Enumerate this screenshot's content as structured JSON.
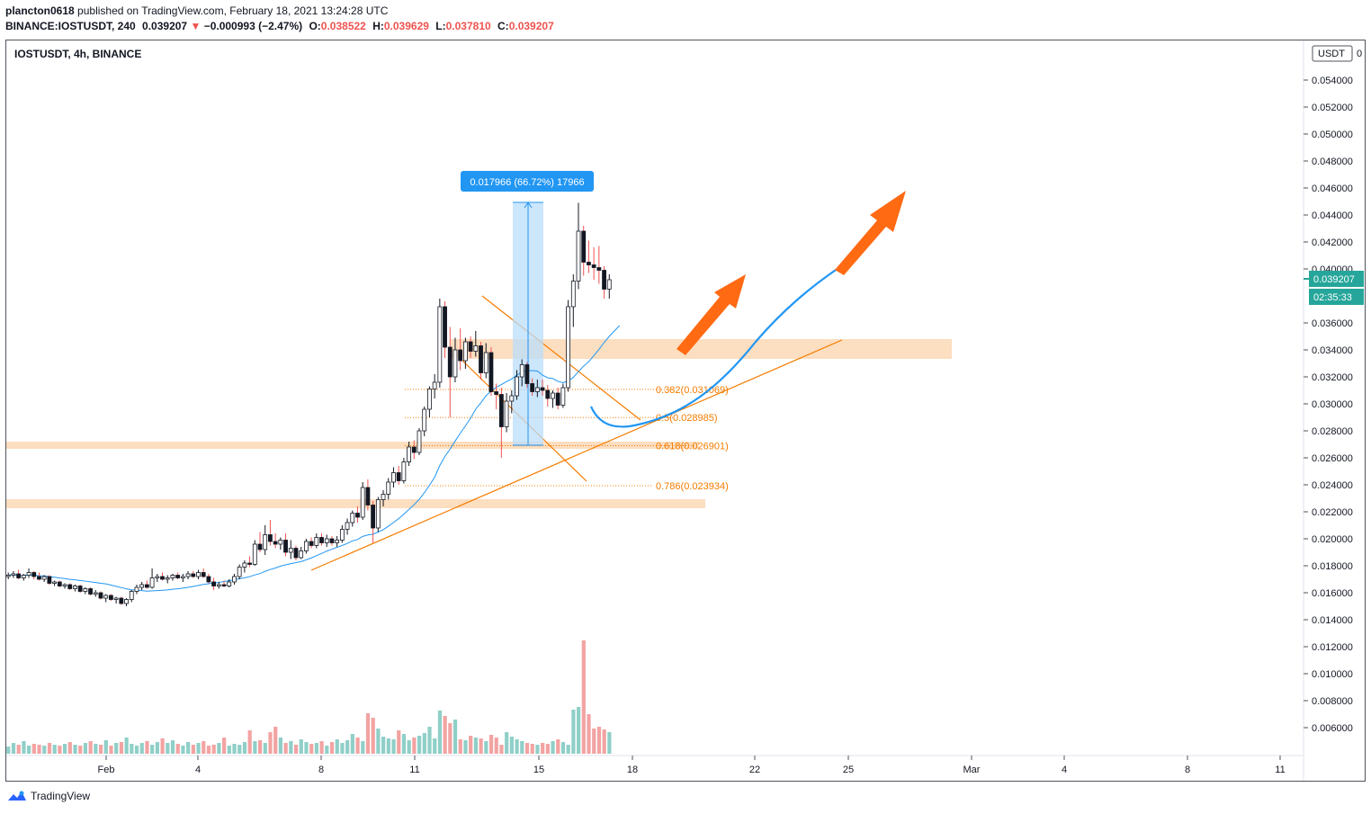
{
  "header": {
    "publisher": "plancton0618",
    "published_text": "published on TradingView.com, February 18, 2021 13:24:28 UTC",
    "symbol_line": "BINANCE:IOSTUSDT, 240",
    "last": "0.039207",
    "change_arrow": "▼",
    "change": "−0.000993 (−2.47%)",
    "o_label": "O:",
    "o_val": "0.038522",
    "h_label": "H:",
    "h_val": "0.039629",
    "l_label": "L:",
    "l_val": "0.037810",
    "c_label": "C:",
    "c_val": "0.039207"
  },
  "chart_title": "IOSTUSDT, 4h, BINANCE",
  "axis": {
    "unit_label": "USDT",
    "unit_suffix": "0",
    "price_badge": "0.039207",
    "countdown_badge": "02:35:33"
  },
  "measure_label": "0.017966 (66.72%) 17966",
  "fib_levels": [
    {
      "label": "0.382(0.031069)",
      "price": 0.031069
    },
    {
      "label": "0.5(0.028985)",
      "price": 0.028985
    },
    {
      "label": "0.618(0.026901)",
      "price": 0.026901
    },
    {
      "label": "0.786(0.023934)",
      "price": 0.023934
    }
  ],
  "footer": {
    "brand": "TradingView"
  },
  "colors": {
    "up": "#26a69a",
    "down": "#ef5350",
    "ma": "#2196f3",
    "zone": "#fbd8b5",
    "fib": "#f57c00",
    "arrow": "#ff6a13",
    "vol_up": "#8fcfc8",
    "vol_down": "#f2a3a2"
  },
  "chart_data": {
    "type": "candlestick",
    "title": "IOSTUSDT, 4h, BINANCE",
    "ylabel": "USDT",
    "ylim": [
      0.0047,
      0.0566
    ],
    "yticks": [
      "0.054000",
      "0.052000",
      "0.050000",
      "0.048000",
      "0.046000",
      "0.044000",
      "0.042000",
      "0.040000",
      "0.036000",
      "0.034000",
      "0.032000",
      "0.030000",
      "0.028000",
      "0.026000",
      "0.024000",
      "0.022000",
      "0.020000",
      "0.018000",
      "0.016000",
      "0.014000",
      "0.012000",
      "0.010000",
      "0.008000",
      "0.006000"
    ],
    "xticks": [
      "Feb",
      "4",
      "8",
      "11",
      "15",
      "18",
      "22",
      "25",
      "Mar",
      "4",
      "8",
      "11"
    ],
    "moving_average_period_note": "",
    "candles": [
      [
        0.0172,
        0.0175,
        0.017,
        0.0173
      ],
      [
        0.0173,
        0.0176,
        0.0171,
        0.0174
      ],
      [
        0.0174,
        0.0177,
        0.017,
        0.0171
      ],
      [
        0.0171,
        0.0174,
        0.0169,
        0.0173
      ],
      [
        0.0173,
        0.0178,
        0.0171,
        0.0175
      ],
      [
        0.0175,
        0.0176,
        0.017,
        0.0172
      ],
      [
        0.0172,
        0.0175,
        0.0169,
        0.017
      ],
      [
        0.017,
        0.0173,
        0.0168,
        0.0172
      ],
      [
        0.0172,
        0.0173,
        0.0166,
        0.0167
      ],
      [
        0.0167,
        0.0169,
        0.0165,
        0.0168
      ],
      [
        0.0168,
        0.0169,
        0.0164,
        0.0165
      ],
      [
        0.0165,
        0.0167,
        0.0163,
        0.0166
      ],
      [
        0.0166,
        0.0167,
        0.0162,
        0.0163
      ],
      [
        0.0163,
        0.0166,
        0.0161,
        0.0165
      ],
      [
        0.0165,
        0.0166,
        0.016,
        0.0161
      ],
      [
        0.0161,
        0.0164,
        0.0159,
        0.0163
      ],
      [
        0.0163,
        0.0164,
        0.0158,
        0.0159
      ],
      [
        0.0159,
        0.0162,
        0.0157,
        0.016
      ],
      [
        0.016,
        0.0161,
        0.0155,
        0.0156
      ],
      [
        0.0156,
        0.0159,
        0.0153,
        0.0158
      ],
      [
        0.0158,
        0.0159,
        0.0154,
        0.0155
      ],
      [
        0.0155,
        0.0157,
        0.0152,
        0.0156
      ],
      [
        0.0156,
        0.0157,
        0.0151,
        0.0152
      ],
      [
        0.0152,
        0.0156,
        0.015,
        0.0155
      ],
      [
        0.0155,
        0.0162,
        0.0153,
        0.0161
      ],
      [
        0.0161,
        0.0166,
        0.0159,
        0.0164
      ],
      [
        0.0164,
        0.0168,
        0.0162,
        0.0166
      ],
      [
        0.0166,
        0.0169,
        0.0163,
        0.0164
      ],
      [
        0.0164,
        0.0178,
        0.0163,
        0.0171
      ],
      [
        0.0171,
        0.0174,
        0.0168,
        0.0172
      ],
      [
        0.0172,
        0.0175,
        0.0169,
        0.017
      ],
      [
        0.017,
        0.0173,
        0.0167,
        0.0171
      ],
      [
        0.0171,
        0.0174,
        0.0169,
        0.0173
      ],
      [
        0.0173,
        0.0175,
        0.017,
        0.0171
      ],
      [
        0.0171,
        0.0174,
        0.0168,
        0.0172
      ],
      [
        0.0172,
        0.0176,
        0.017,
        0.0174
      ],
      [
        0.0174,
        0.0176,
        0.0171,
        0.0172
      ],
      [
        0.0172,
        0.0177,
        0.017,
        0.0175
      ],
      [
        0.0175,
        0.0178,
        0.0171,
        0.0172
      ],
      [
        0.0172,
        0.0174,
        0.0167,
        0.0168
      ],
      [
        0.0168,
        0.0171,
        0.0162,
        0.0165
      ],
      [
        0.0165,
        0.0168,
        0.0163,
        0.0166
      ],
      [
        0.0166,
        0.0169,
        0.0164,
        0.0165
      ],
      [
        0.0165,
        0.017,
        0.0164,
        0.0168
      ],
      [
        0.0168,
        0.0174,
        0.0166,
        0.0172
      ],
      [
        0.0172,
        0.0181,
        0.017,
        0.0179
      ],
      [
        0.0179,
        0.0184,
        0.0175,
        0.0182
      ],
      [
        0.0182,
        0.0187,
        0.0179,
        0.0181
      ],
      [
        0.0181,
        0.0199,
        0.018,
        0.0196
      ],
      [
        0.0196,
        0.0205,
        0.019,
        0.0192
      ],
      [
        0.0192,
        0.021,
        0.0188,
        0.0203
      ],
      [
        0.0203,
        0.0214,
        0.0195,
        0.0198
      ],
      [
        0.0198,
        0.0204,
        0.0193,
        0.0196
      ],
      [
        0.0196,
        0.0201,
        0.0192,
        0.0199
      ],
      [
        0.0199,
        0.0204,
        0.0187,
        0.019
      ],
      [
        0.019,
        0.0199,
        0.0185,
        0.0193
      ],
      [
        0.0193,
        0.0195,
        0.0184,
        0.0186
      ],
      [
        0.0186,
        0.0194,
        0.0185,
        0.0191
      ],
      [
        0.0191,
        0.02,
        0.0189,
        0.0198
      ],
      [
        0.0198,
        0.0201,
        0.0193,
        0.0195
      ],
      [
        0.0195,
        0.0204,
        0.0193,
        0.0201
      ],
      [
        0.0201,
        0.0204,
        0.0195,
        0.0197
      ],
      [
        0.0197,
        0.0203,
        0.0194,
        0.02
      ],
      [
        0.02,
        0.0202,
        0.0195,
        0.0197
      ],
      [
        0.0197,
        0.0202,
        0.0194,
        0.0199
      ],
      [
        0.0199,
        0.021,
        0.0197,
        0.0207
      ],
      [
        0.0207,
        0.0215,
        0.0203,
        0.0212
      ],
      [
        0.0212,
        0.0221,
        0.0209,
        0.0219
      ],
      [
        0.0219,
        0.0224,
        0.0212,
        0.0216
      ],
      [
        0.0216,
        0.0242,
        0.0214,
        0.0238
      ],
      [
        0.0238,
        0.0244,
        0.0221,
        0.0225
      ],
      [
        0.0225,
        0.0228,
        0.0197,
        0.0208
      ],
      [
        0.0208,
        0.0231,
        0.0205,
        0.0229
      ],
      [
        0.0229,
        0.0236,
        0.0224,
        0.0233
      ],
      [
        0.0233,
        0.0245,
        0.0229,
        0.0242
      ],
      [
        0.0242,
        0.0253,
        0.0238,
        0.0249
      ],
      [
        0.0249,
        0.0254,
        0.024,
        0.0243
      ],
      [
        0.0243,
        0.026,
        0.0241,
        0.0257
      ],
      [
        0.0257,
        0.0272,
        0.0254,
        0.0268
      ],
      [
        0.0268,
        0.0273,
        0.0259,
        0.0264
      ],
      [
        0.0264,
        0.0282,
        0.0262,
        0.028
      ],
      [
        0.028,
        0.0298,
        0.0276,
        0.0296
      ],
      [
        0.0296,
        0.0313,
        0.029,
        0.0311
      ],
      [
        0.0311,
        0.0322,
        0.0304,
        0.0316
      ],
      [
        0.0316,
        0.0378,
        0.0312,
        0.0372
      ],
      [
        0.0372,
        0.0376,
        0.0334,
        0.0342
      ],
      [
        0.0342,
        0.0357,
        0.029,
        0.032
      ],
      [
        0.032,
        0.0349,
        0.0316,
        0.034
      ],
      [
        0.034,
        0.0356,
        0.0325,
        0.0332
      ],
      [
        0.0332,
        0.0349,
        0.0326,
        0.0346
      ],
      [
        0.0346,
        0.035,
        0.0334,
        0.0339
      ],
      [
        0.0339,
        0.0354,
        0.0335,
        0.0343
      ],
      [
        0.0343,
        0.0346,
        0.0318,
        0.0323
      ],
      [
        0.0323,
        0.0345,
        0.0319,
        0.0338
      ],
      [
        0.0338,
        0.0342,
        0.0306,
        0.0309
      ],
      [
        0.0309,
        0.0315,
        0.0296,
        0.0307
      ],
      [
        0.0307,
        0.0312,
        0.026,
        0.0283
      ],
      [
        0.0283,
        0.0308,
        0.0279,
        0.0302
      ],
      [
        0.0302,
        0.031,
        0.0293,
        0.0306
      ],
      [
        0.0306,
        0.0325,
        0.0303,
        0.032
      ],
      [
        0.032,
        0.0333,
        0.0313,
        0.0329
      ],
      [
        0.0329,
        0.0331,
        0.0312,
        0.0315
      ],
      [
        0.0315,
        0.0319,
        0.0306,
        0.0309
      ],
      [
        0.0309,
        0.0318,
        0.0305,
        0.0312
      ],
      [
        0.0312,
        0.0318,
        0.0306,
        0.031
      ],
      [
        0.031,
        0.0314,
        0.0298,
        0.0304
      ],
      [
        0.0304,
        0.031,
        0.0297,
        0.0308
      ],
      [
        0.0308,
        0.0312,
        0.0296,
        0.0299
      ],
      [
        0.0299,
        0.0315,
        0.0297,
        0.0312
      ],
      [
        0.0312,
        0.0377,
        0.0309,
        0.0372
      ],
      [
        0.0372,
        0.0396,
        0.0357,
        0.0391
      ],
      [
        0.0391,
        0.0449,
        0.0385,
        0.0428
      ],
      [
        0.0428,
        0.0432,
        0.0395,
        0.0405
      ],
      [
        0.0405,
        0.0421,
        0.0397,
        0.0403
      ],
      [
        0.0403,
        0.0416,
        0.0392,
        0.0401
      ],
      [
        0.0401,
        0.0417,
        0.0389,
        0.0399
      ],
      [
        0.0399,
        0.0402,
        0.0378,
        0.0385
      ],
      [
        0.0385,
        0.0396,
        0.0378,
        0.0392
      ]
    ]
  }
}
